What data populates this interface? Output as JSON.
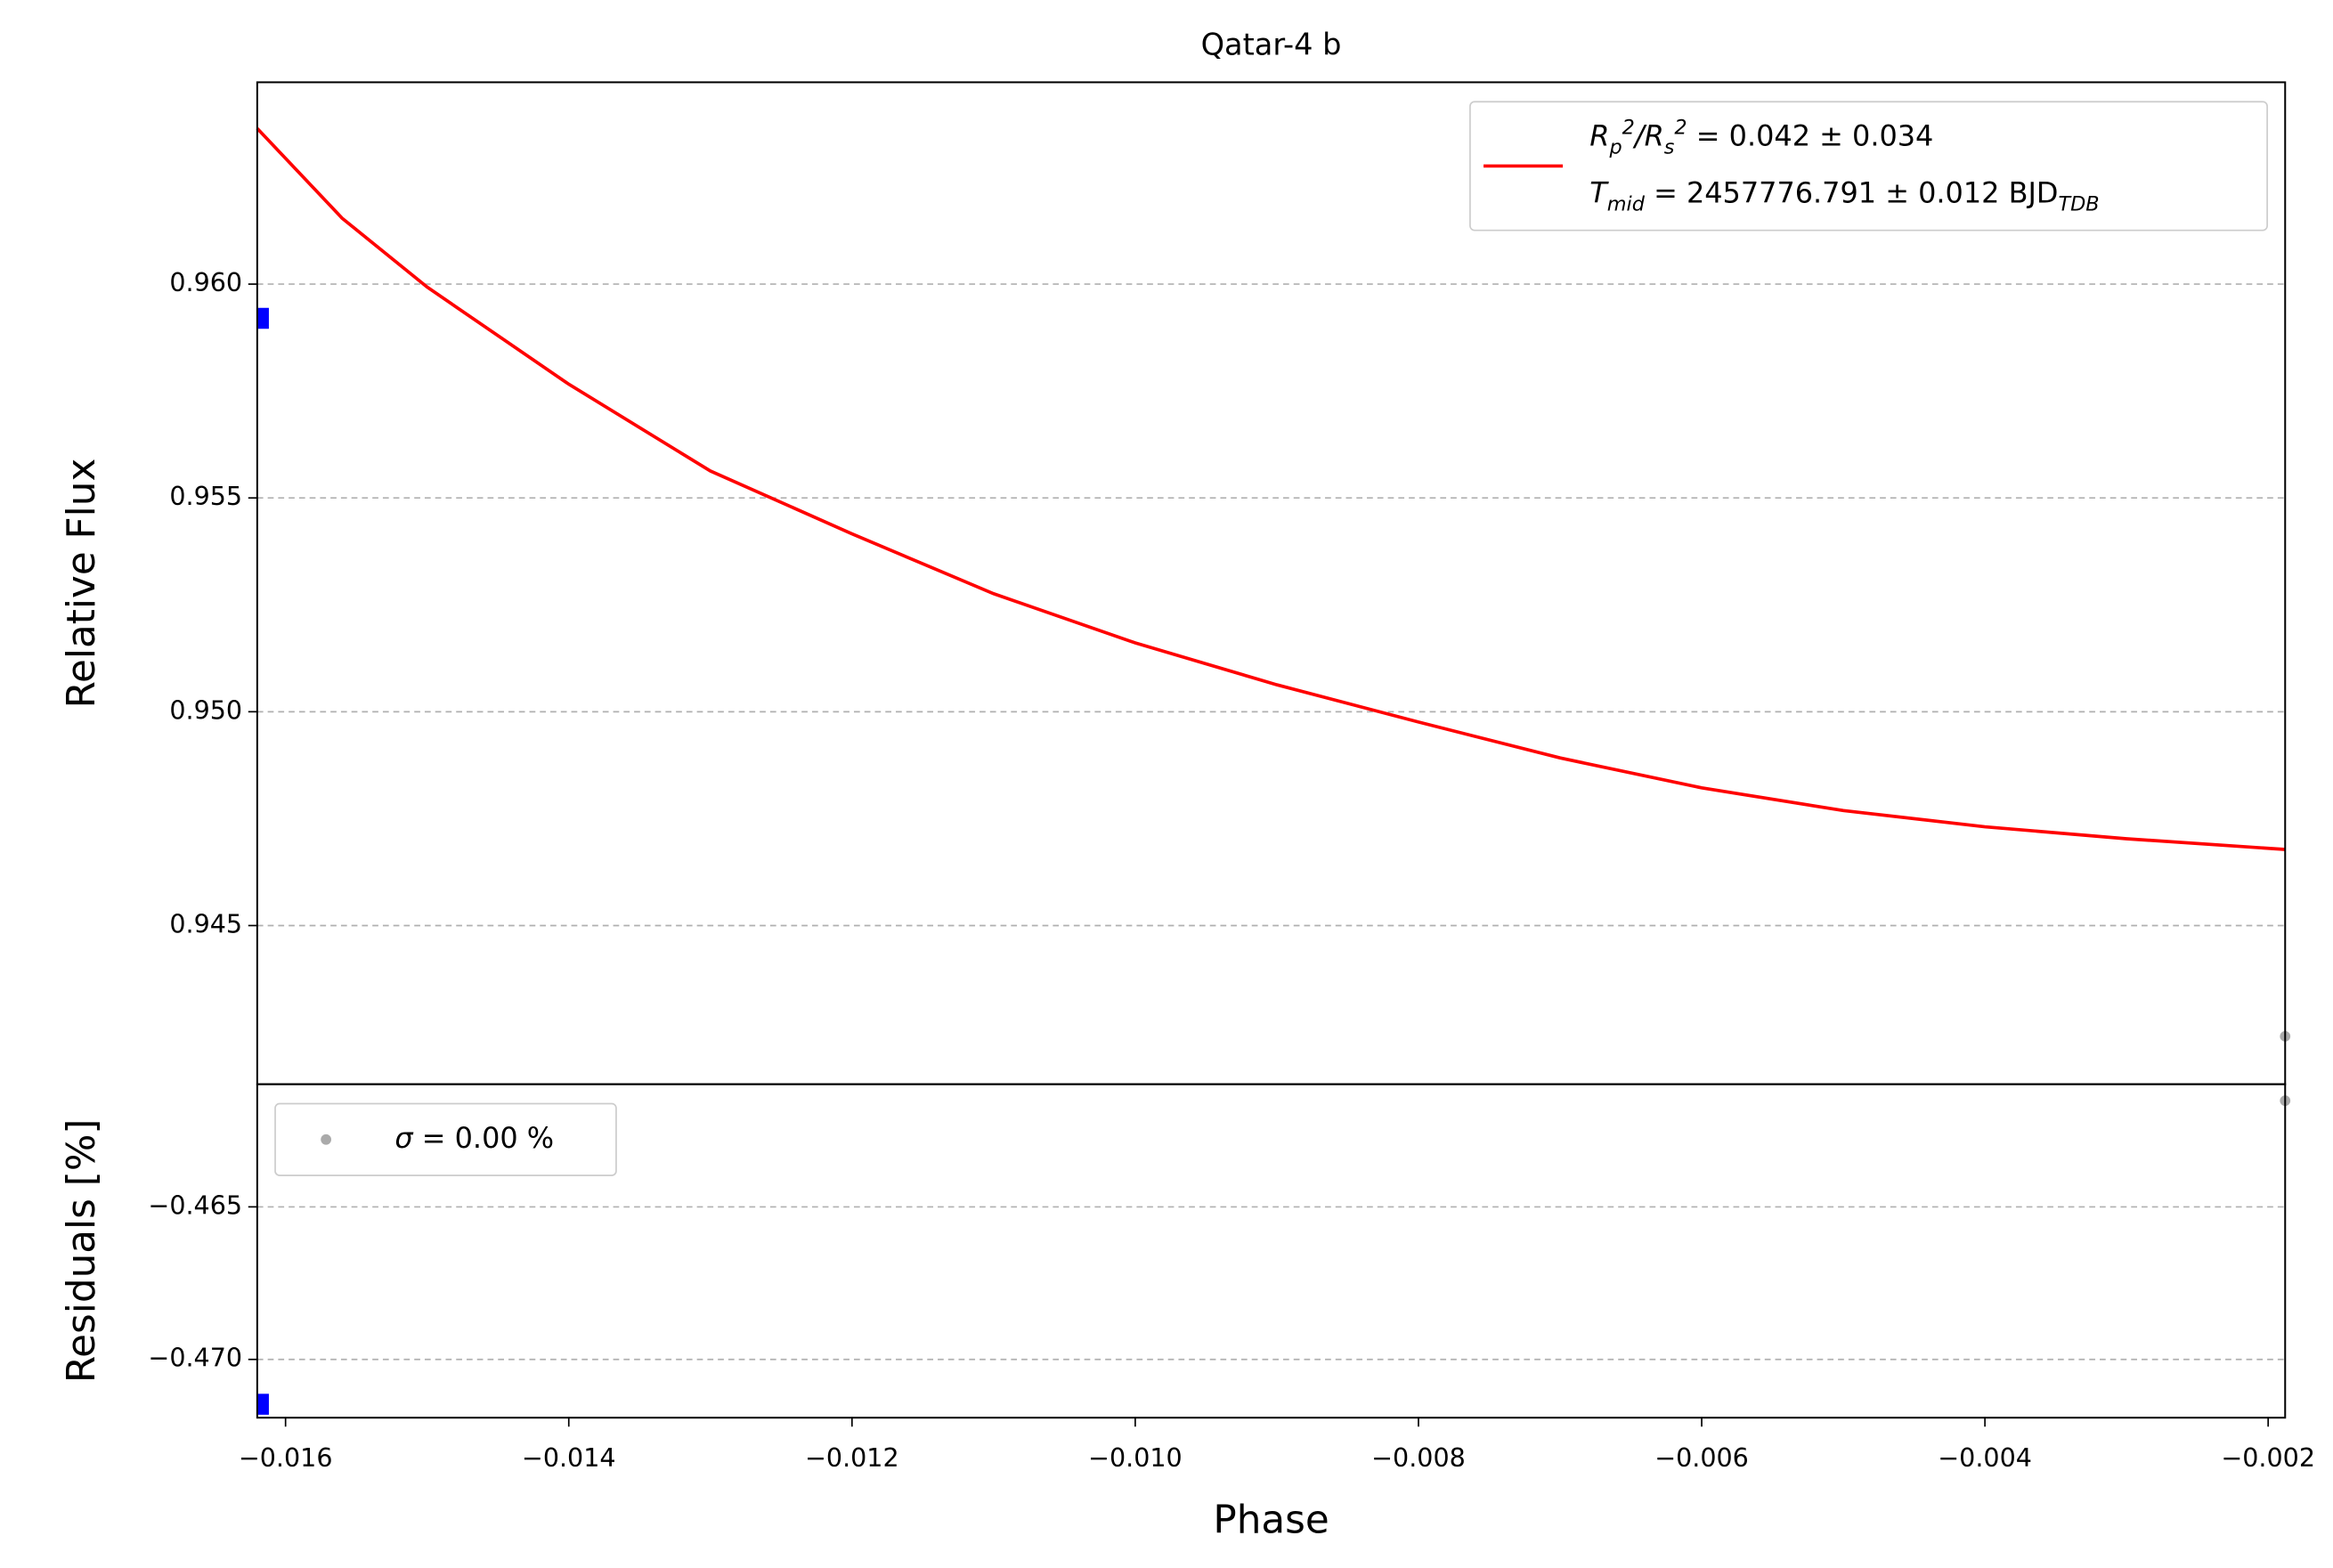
{
  "chart_data": [
    {
      "type": "line",
      "title": "Qatar-4 b",
      "ylabel": "Relative Flux",
      "xlim": [
        -0.0162,
        -0.00188
      ],
      "ylim": [
        0.94129,
        0.96472
      ],
      "yticks": [
        {
          "value": 0.96,
          "label": "0.960"
        },
        0.955,
        {
          "value": 0.95,
          "label": "0.950"
        },
        0.945
      ],
      "grid": true,
      "legend": "upper right",
      "series": [
        {
          "name": [
            "$R_p^2/R_s^2$ = 0.042 ± 0.034",
            "$T_{mid}$ = 2457776.791 ± 0.012 BJD$_{TDB}$"
          ],
          "color": "#ff0000",
          "x": [
            -0.0162,
            -0.0156,
            -0.015,
            -0.014,
            -0.013,
            -0.012,
            -0.011,
            -0.01,
            -0.009,
            -0.008,
            -0.007,
            -0.006,
            -0.005,
            -0.004,
            -0.003,
            -0.00188
          ],
          "values": [
            0.96364,
            0.96154,
            0.95993,
            0.95766,
            0.95563,
            0.95416,
            0.95276,
            0.95161,
            0.95063,
            0.94976,
            0.94892,
            0.94822,
            0.94769,
            0.94731,
            0.94703,
            0.94678
          ]
        },
        {
          "type": "scatter",
          "marker": "square",
          "color": "#0000ff",
          "x": [
            -0.01616
          ],
          "values": [
            0.9592
          ]
        },
        {
          "type": "scatter",
          "marker": "circle",
          "color": "#aaaaaa",
          "x": [
            -0.00188
          ],
          "values": [
            0.94241
          ]
        }
      ]
    },
    {
      "type": "scatter",
      "ylabel": "Residuals [%]",
      "xlabel": "Phase",
      "xlim": [
        -0.0162,
        -0.00188
      ],
      "ylim": [
        -0.47191,
        -0.46098
      ],
      "xticks": [
        {
          "value": -0.016,
          "label": "−0.016"
        },
        {
          "value": -0.014,
          "label": "−0.014"
        },
        {
          "value": -0.012,
          "label": "−0.012"
        },
        {
          "value": -0.01,
          "label": "−0.010"
        },
        {
          "value": -0.008,
          "label": "−0.008"
        },
        {
          "value": -0.006,
          "label": "−0.006"
        },
        {
          "value": -0.004,
          "label": "−0.004"
        },
        {
          "value": -0.002,
          "label": "−0.002"
        }
      ],
      "yticks": [
        {
          "value": -0.465,
          "label": "−0.465"
        },
        {
          "value": -0.47,
          "label": "−0.470"
        }
      ],
      "grid": true,
      "legend": "upper left",
      "series": [
        {
          "name": [
            "$\\sigma$ = 0.00 %"
          ],
          "marker": "circle",
          "color": "#aaaaaa",
          "x": [
            -0.00188
          ],
          "values": [
            -0.46152
          ]
        },
        {
          "marker": "square",
          "color": "#0000ff",
          "x": [
            -0.01616
          ],
          "values": [
            -0.47147
          ]
        }
      ]
    }
  ]
}
